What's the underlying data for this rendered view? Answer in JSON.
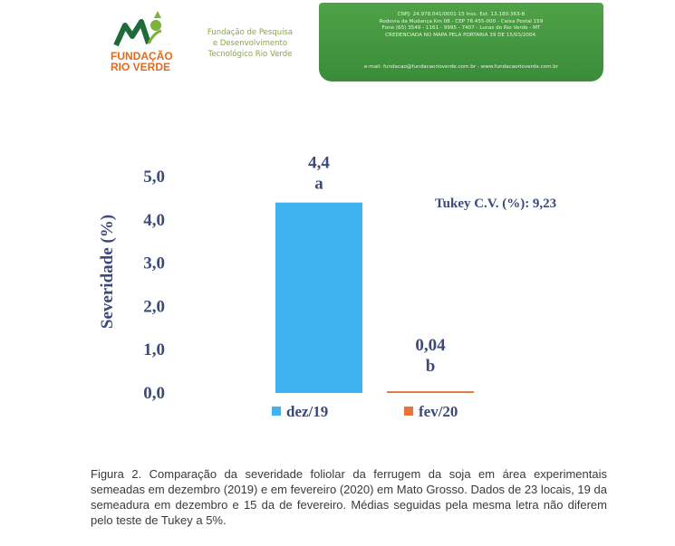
{
  "header": {
    "logo_text_top": "FUNDAÇÃO",
    "logo_text_bottom": "RIO VERDE",
    "org_lines": [
      "Fundação de Pesquisa",
      "e Desenvolvimento",
      "Tecnológico Rio Verde"
    ],
    "banner_lines": [
      "CNPJ: 24.978.041/0001-15 Insc. Est. 13.180.363-8",
      "Rodovia da Mudança Km 08 - CEP 78.455-000 - Caixa Postal 159",
      "Fone (65) 3549 - 1161 - 9995 - 7407 - Lucas do Rio Verde - MT",
      "CREDENCIADA NO MAPA PELA PORTARIA 39 DE 15/03/2004."
    ],
    "banner_contact": "e-mail: fundacao@fundacaorioverde.com.br - www.fundacaorioverde.com.br",
    "brand_color": "#3a8c3a",
    "accent_color": "#e06b1f"
  },
  "chart_data": {
    "type": "bar",
    "categories": [
      "dez/19",
      "fev/20"
    ],
    "values": [
      4.4,
      0.04
    ],
    "value_labels": [
      "4,4",
      "0,04"
    ],
    "letters": [
      "a",
      "b"
    ],
    "colors": [
      "#3fb2f2",
      "#e8743b"
    ],
    "ylabel": "Severidade (%)",
    "yticks": [
      "0,0",
      "1,0",
      "2,0",
      "3,0",
      "4,0",
      "5,0"
    ],
    "ytick_values": [
      0,
      1,
      2,
      3,
      4,
      5
    ],
    "ylim": [
      0,
      5
    ],
    "annotation": "Tukey C.V. (%): 9,23",
    "legend": [
      "dez/19",
      "fev/20"
    ],
    "legend_placement": "bottom",
    "grid": false
  },
  "caption": "Figura 2. Comparação da severidade foliolar da ferrugem da soja em área experimentais semeadas em dezembro (2019) e em fevereiro (2020) em Mato Grosso. Dados de 23 locais, 19 da semeadura em dezembro e 15 da de fevereiro. Médias seguidas pela mesma letra não diferem pelo teste de Tukey a 5%."
}
